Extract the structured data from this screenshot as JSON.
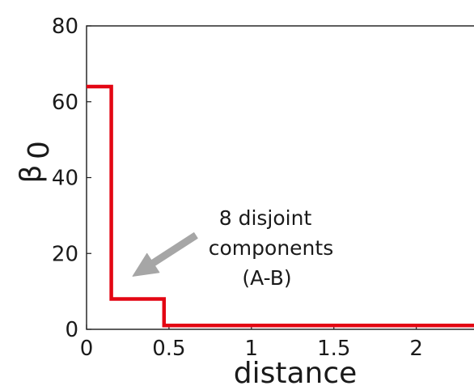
{
  "chart_data": {
    "type": "line",
    "step": true,
    "xlabel": "distance",
    "ylabel_main": "β",
    "ylabel_sub": "0",
    "xlim": [
      0,
      2.35
    ],
    "ylim": [
      0,
      80
    ],
    "xticks": [
      0,
      0.5,
      1,
      1.5,
      2
    ],
    "xtick_labels": [
      "0",
      "0.5",
      "1",
      "1.5",
      "2"
    ],
    "yticks": [
      0,
      20,
      40,
      60,
      80
    ],
    "ytick_labels": [
      "0",
      "20",
      "40",
      "60",
      "80"
    ],
    "grid": false,
    "series": [
      {
        "color": "#e30613",
        "x": [
          0,
          0.15,
          0.15,
          0.47,
          0.47,
          2.35
        ],
        "y": [
          64,
          64,
          8,
          8,
          1,
          1
        ]
      }
    ],
    "annotation": {
      "lines": [
        "8 disjoint",
        "components",
        "(A-B)"
      ],
      "arrow_color": "#a6a6a6",
      "arrow_target": [
        0.28,
        14
      ]
    }
  }
}
